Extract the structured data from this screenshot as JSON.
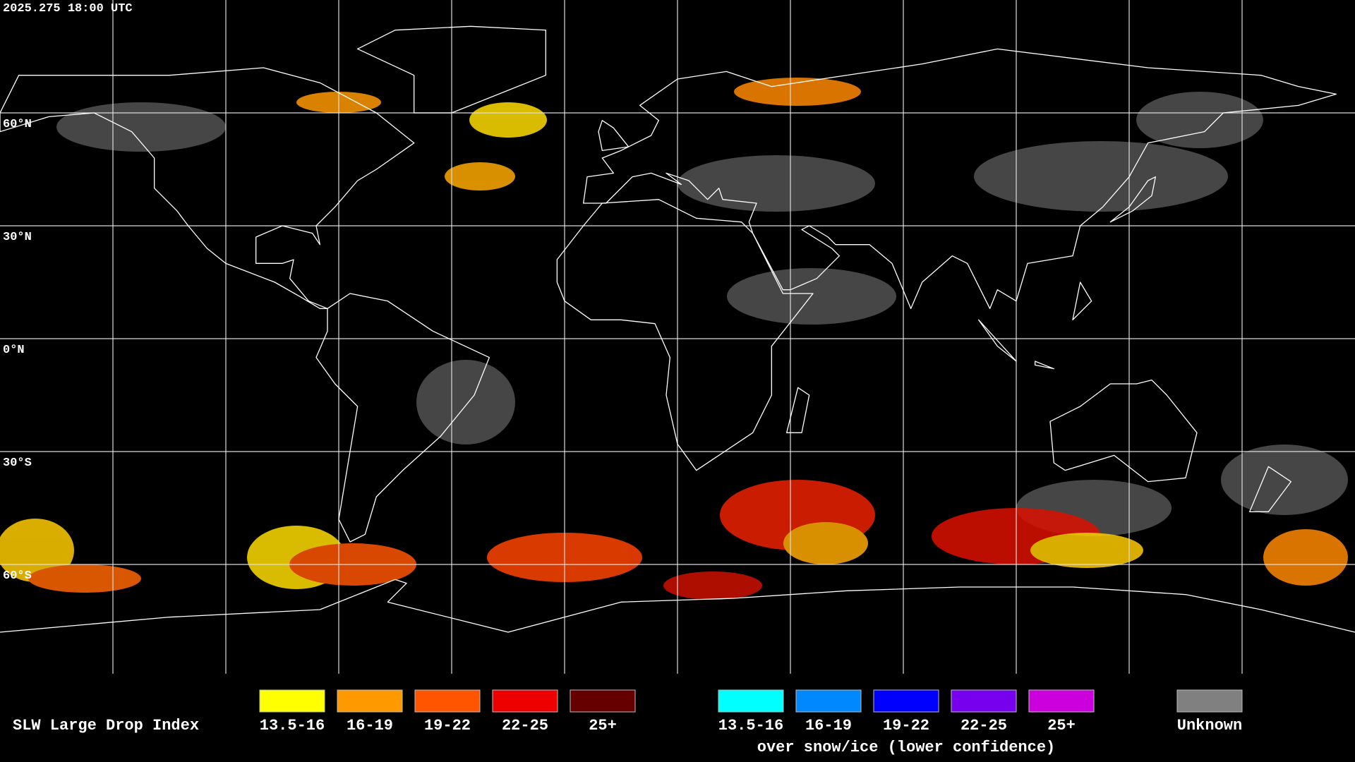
{
  "map": {
    "timestamp": "2025.275 18:00 UTC",
    "latitude_labels": [
      "60°N",
      "30°N",
      "0°N",
      "30°S",
      "60°S"
    ]
  },
  "legend": {
    "title": "SLW Large Drop Index",
    "groups": [
      {
        "items": [
          {
            "label": "13.5-16",
            "color": "#ffff00"
          },
          {
            "label": "16-19",
            "color": "#ff9900"
          },
          {
            "label": "19-22",
            "color": "#ff5500"
          },
          {
            "label": "22-25",
            "color": "#ee0000"
          },
          {
            "label": "25+",
            "color": "#660000"
          }
        ]
      },
      {
        "caption": "over snow/ice (lower confidence)",
        "items": [
          {
            "label": "13.5-16",
            "color": "#00ffff"
          },
          {
            "label": "16-19",
            "color": "#0088ff"
          },
          {
            "label": "19-22",
            "color": "#0000ff"
          },
          {
            "label": "22-25",
            "color": "#7700ee"
          },
          {
            "label": "25+",
            "color": "#cc00dd"
          }
        ]
      },
      {
        "items": [
          {
            "label": "Unknown",
            "color": "#808080"
          }
        ]
      }
    ]
  }
}
